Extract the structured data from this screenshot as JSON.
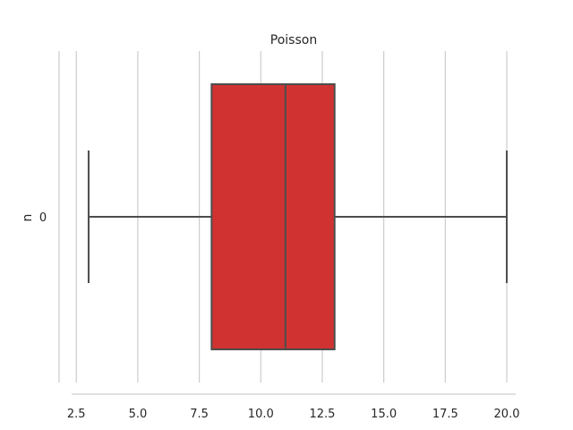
{
  "chart_data": {
    "type": "box",
    "orientation": "horizontal",
    "title": "Poisson",
    "xlabel": "",
    "ylabel": "n",
    "xlim": [
      1.8,
      20.8
    ],
    "x_ticks": [
      2.5,
      5.0,
      7.5,
      10.0,
      12.5,
      15.0,
      17.5,
      20.0
    ],
    "x_tick_labels": [
      "2.5",
      "5.0",
      "7.5",
      "10.0",
      "12.5",
      "15.0",
      "17.5",
      "20.0"
    ],
    "categories": [
      "0"
    ],
    "series": [
      {
        "category": "0",
        "whisker_low": 3,
        "q1": 8,
        "median": 11,
        "q3": 13,
        "whisker_high": 20,
        "color": "#d03232"
      }
    ],
    "grid": true
  }
}
